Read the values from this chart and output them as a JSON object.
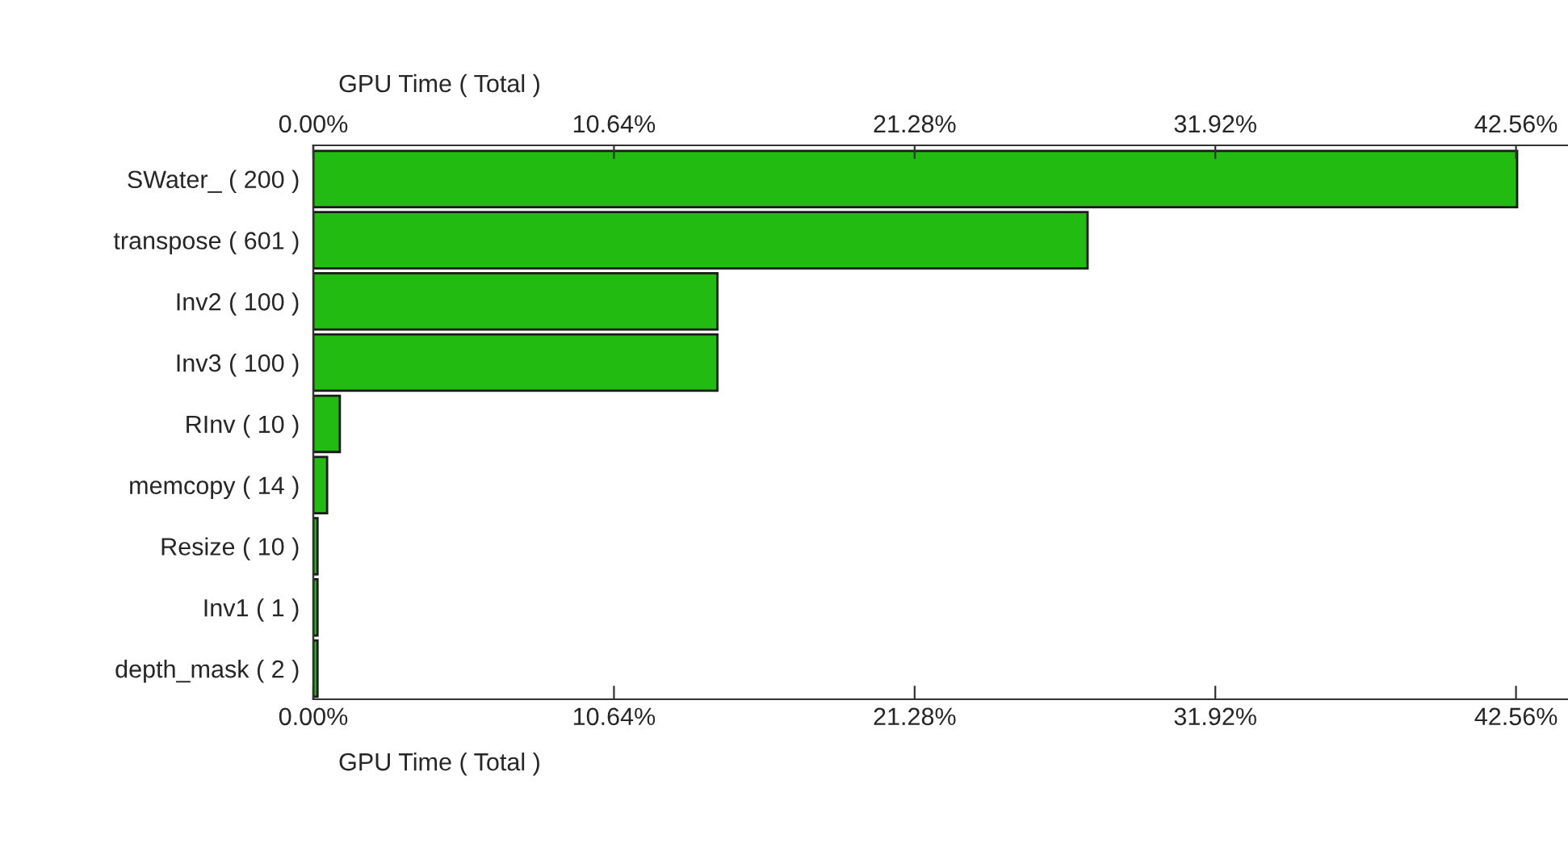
{
  "chart_data": {
    "type": "bar",
    "orientation": "horizontal",
    "xlabel": "GPU Time ( Total )",
    "x2label": "GPU Time ( Total )",
    "categories": [
      "SWater_ ( 200 )",
      "transpose ( 601 )",
      "Inv2 ( 100 )",
      "Inv3 ( 100 )",
      "RInv ( 10 )",
      "memcopy ( 14 )",
      "Resize ( 10 )",
      "Inv1 ( 1 )",
      "depth_mask ( 2 )"
    ],
    "values": [
      42.6,
      27.4,
      14.3,
      14.3,
      0.94,
      0.49,
      0.15,
      0.15,
      0.15
    ],
    "color": "#22bb11",
    "xlim": [
      0,
      44.4
    ],
    "xticks": [
      {
        "value": 0,
        "label": "0.00%"
      },
      {
        "value": 10.64,
        "label": "10.64%"
      },
      {
        "value": 21.28,
        "label": "21.28%"
      },
      {
        "value": 31.92,
        "label": "31.92%"
      },
      {
        "value": 42.56,
        "label": "42.56%"
      }
    ],
    "x2lim": [
      0,
      44.4
    ],
    "x2ticks": [
      {
        "value": 0,
        "label": "0.00%"
      },
      {
        "value": 10.64,
        "label": "10.64%"
      },
      {
        "value": 21.28,
        "label": "21.28%"
      },
      {
        "value": 31.92,
        "label": "31.92%"
      },
      {
        "value": 42.56,
        "label": "42.56%"
      }
    ],
    "grid": false
  }
}
